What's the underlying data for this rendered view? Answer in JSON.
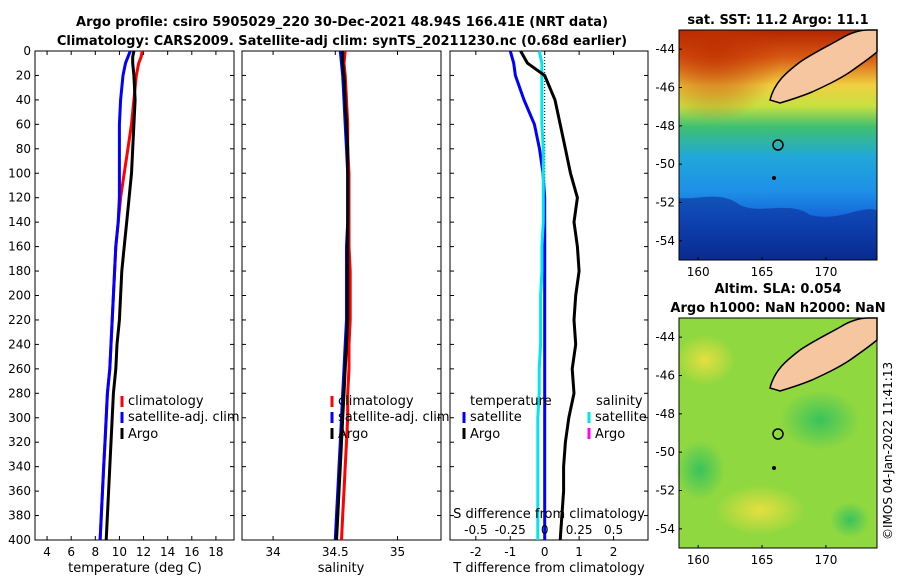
{
  "title_line1": "Argo profile: csiro 5905029_220 30-Dec-2021 48.94S 166.41E (NRT data)",
  "title_line2": "Climatology: CARS2009. Satellite-adj clim: synTS_20211230.nc (0.68d earlier)",
  "stamp": "©IMOS 04-Jan-2022 11:41:13",
  "colors": {
    "climatology": "#ff0000",
    "satellite": "#0000ff",
    "argo": "#000000",
    "t_diff_satellite": "#0000ff",
    "s_diff_satellite": "#00e5ee",
    "s_diff_argo": "#ff00ff",
    "land": "#f5c6a0"
  },
  "chart_data": [
    {
      "id": "temperature",
      "type": "line",
      "xlabel": "temperature (deg C)",
      "ylabel": "",
      "xlim": [
        3,
        19.5
      ],
      "ylim": [
        400,
        0
      ],
      "xticks": [
        4,
        6,
        8,
        10,
        12,
        14,
        16,
        18
      ],
      "yticks": [
        0,
        20,
        40,
        60,
        80,
        100,
        120,
        140,
        160,
        180,
        200,
        220,
        240,
        260,
        280,
        300,
        320,
        340,
        360,
        380,
        400
      ],
      "legend": [
        "climatology",
        "satellite-adj. clim",
        "Argo"
      ],
      "series": [
        {
          "name": "climatology",
          "color": "#ff0000",
          "depth": [
            0,
            5,
            10,
            20,
            40,
            60,
            80,
            100,
            120,
            140,
            160,
            180,
            200,
            220,
            240,
            260,
            280,
            300,
            320,
            340,
            360,
            380,
            400
          ],
          "values": [
            11.9,
            11.8,
            11.6,
            11.4,
            11.2,
            11.0,
            10.7,
            10.4,
            10.1,
            9.9,
            9.7,
            9.6,
            9.5,
            9.4,
            9.3,
            9.2,
            9.0,
            8.9,
            8.8,
            8.7,
            8.6,
            8.5,
            8.4
          ]
        },
        {
          "name": "satellite-adj. clim",
          "color": "#0000ff",
          "depth": [
            0,
            5,
            10,
            20,
            40,
            60,
            80,
            100,
            120,
            140,
            160,
            180,
            200,
            220,
            240,
            260,
            280,
            300,
            320,
            340,
            360,
            380,
            400
          ],
          "values": [
            10.9,
            10.7,
            10.5,
            10.3,
            10.1,
            10.0,
            10.0,
            10.0,
            10.0,
            9.9,
            9.7,
            9.6,
            9.5,
            9.4,
            9.3,
            9.2,
            9.0,
            8.9,
            8.8,
            8.7,
            8.6,
            8.5,
            8.4
          ]
        },
        {
          "name": "Argo",
          "color": "#000000",
          "depth": [
            0,
            5,
            10,
            20,
            40,
            60,
            80,
            100,
            120,
            140,
            160,
            180,
            200,
            220,
            240,
            260,
            280,
            300,
            320,
            340,
            360,
            380,
            400
          ],
          "values": [
            11.2,
            11.1,
            11.1,
            11.2,
            11.3,
            11.2,
            11.1,
            11.0,
            10.8,
            10.6,
            10.4,
            10.2,
            10.1,
            10.0,
            9.8,
            9.7,
            9.5,
            9.4,
            9.3,
            9.2,
            9.1,
            9.0,
            8.9
          ]
        }
      ]
    },
    {
      "id": "salinity",
      "type": "line",
      "xlabel": "salinity",
      "ylabel": "",
      "xlim": [
        33.75,
        35.35
      ],
      "ylim": [
        400,
        0
      ],
      "xticks": [
        34,
        34.5,
        35
      ],
      "legend": [
        "climatology",
        "satellite-adj. clim",
        "Argo"
      ],
      "series": [
        {
          "name": "climatology",
          "color": "#ff0000",
          "depth": [
            0,
            10,
            20,
            40,
            60,
            80,
            100,
            120,
            140,
            160,
            180,
            200,
            220,
            240,
            260,
            280,
            300,
            320,
            340,
            360,
            380,
            400
          ],
          "values": [
            34.58,
            34.57,
            34.58,
            34.59,
            34.6,
            34.6,
            34.61,
            34.61,
            34.61,
            34.61,
            34.62,
            34.62,
            34.62,
            34.61,
            34.61,
            34.6,
            34.6,
            34.59,
            34.58,
            34.57,
            34.56,
            34.55
          ]
        },
        {
          "name": "satellite-adj. clim",
          "color": "#0000ff",
          "depth": [
            0,
            10,
            20,
            40,
            60,
            80,
            100,
            120,
            140,
            160,
            180,
            200,
            220,
            240,
            260,
            280,
            300,
            320,
            340,
            360,
            380,
            400
          ],
          "values": [
            34.54,
            34.55,
            34.56,
            34.57,
            34.58,
            34.59,
            34.6,
            34.6,
            34.6,
            34.59,
            34.59,
            34.59,
            34.59,
            34.58,
            34.57,
            34.56,
            34.55,
            34.54,
            34.53,
            34.52,
            34.51,
            34.5
          ]
        },
        {
          "name": "Argo",
          "color": "#000000",
          "depth": [
            0,
            10,
            20,
            40,
            60,
            80,
            100,
            120,
            140,
            160,
            180,
            200,
            220,
            240,
            260,
            280,
            300,
            320,
            340,
            360,
            380,
            400
          ],
          "values": [
            34.56,
            34.56,
            34.57,
            34.58,
            34.59,
            34.6,
            34.6,
            34.6,
            34.6,
            34.6,
            34.6,
            34.6,
            34.6,
            34.59,
            34.58,
            34.57,
            34.56,
            34.55,
            34.54,
            34.53,
            34.52,
            34.51
          ]
        }
      ]
    },
    {
      "id": "differences",
      "type": "line",
      "xlabel": "T difference from climatology",
      "xlabel_top": "S difference from climatology",
      "xlim": [
        -2.75,
        3.0
      ],
      "ylim": [
        400,
        0
      ],
      "xticks": [
        -2,
        -1,
        0,
        1,
        2
      ],
      "xticks_s": [
        -0.5,
        -0.25,
        0,
        0.25,
        0.5
      ],
      "xticks_s_labels": [
        "-0.5",
        "-0.25",
        "0",
        "0.25",
        "0.5"
      ],
      "legend_temperature_title": "temperature",
      "legend_salinity_title": "salinity",
      "legend_temperature": [
        "satellite",
        "Argo"
      ],
      "legend_salinity": [
        "satellite",
        "Argo"
      ],
      "series": [
        {
          "name": "T satellite",
          "color": "#0000ff",
          "depth": [
            0,
            10,
            20,
            40,
            60,
            80,
            100,
            120,
            140,
            160,
            180,
            200,
            220,
            240,
            260,
            280,
            300,
            320,
            340,
            360,
            380,
            400
          ],
          "values": [
            -1.0,
            -0.9,
            -0.85,
            -0.6,
            -0.3,
            -0.15,
            -0.05,
            0.0,
            0.0,
            0.0,
            0.0,
            0.0,
            0.0,
            0.0,
            0.0,
            0.0,
            0.0,
            0.0,
            0.0,
            0.0,
            0.0,
            0.0
          ]
        },
        {
          "name": "S satellite",
          "color": "#00e5ee",
          "depth": [
            0,
            10,
            20,
            40,
            60,
            80,
            100,
            120,
            140,
            160,
            180,
            200,
            220,
            240,
            260,
            280,
            300,
            320,
            340,
            360,
            380,
            400
          ],
          "values": [
            -0.04,
            -0.02,
            -0.02,
            -0.02,
            -0.02,
            -0.01,
            -0.01,
            -0.01,
            -0.01,
            -0.02,
            -0.02,
            -0.03,
            -0.03,
            -0.03,
            -0.04,
            -0.04,
            -0.05,
            -0.05,
            -0.05,
            -0.05,
            -0.05,
            -0.05
          ]
        },
        {
          "name": "T Argo",
          "color": "#000000",
          "depth": [
            0,
            10,
            20,
            40,
            60,
            80,
            100,
            120,
            140,
            160,
            180,
            200,
            220,
            240,
            260,
            280,
            300,
            320,
            340,
            360,
            380,
            400
          ],
          "values": [
            -0.7,
            -0.5,
            0.0,
            0.3,
            0.45,
            0.6,
            0.75,
            0.95,
            0.85,
            0.95,
            1.0,
            0.9,
            0.85,
            0.9,
            0.8,
            0.85,
            0.7,
            0.6,
            0.55,
            0.55,
            0.5,
            0.45
          ]
        }
      ]
    },
    {
      "id": "sst_map",
      "type": "heatmap",
      "title": "sat. SST: 11.2 Argo: 11.1",
      "xticks": [
        160,
        165,
        170
      ],
      "yticks": [
        -44,
        -46,
        -48,
        -50,
        -52,
        -54
      ],
      "xlim": [
        158.5,
        174
      ],
      "ylim": [
        -55,
        -43
      ]
    },
    {
      "id": "sla_map",
      "type": "heatmap",
      "title_line1": "Altim. SLA: 0.054",
      "title_line2": "Argo h1000: NaN h2000: NaN",
      "xticks": [
        160,
        165,
        170
      ],
      "yticks": [
        -44,
        -46,
        -48,
        -50,
        -52,
        -54
      ],
      "xlim": [
        158.5,
        174
      ],
      "ylim": [
        -55,
        -43
      ]
    }
  ]
}
